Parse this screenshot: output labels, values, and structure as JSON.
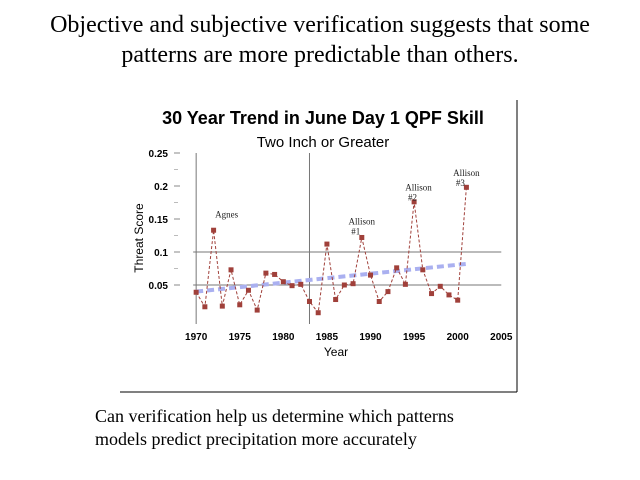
{
  "slide": {
    "heading_line1": "Objective and subjective verification suggests that some",
    "heading_line2": "patterns are more predictable than others.",
    "caption_line1": "Can verification help us determine which patterns",
    "caption_line2": "models predict precipitation more accurately"
  },
  "chart_data": {
    "type": "line",
    "title": "30 Year Trend in June Day 1 QPF Skill",
    "subtitle": "Two Inch or Greater",
    "xlabel": "Year",
    "ylabel": "Threat Score",
    "xlim": [
      1967,
      2006
    ],
    "ylim": [
      0,
      0.25
    ],
    "x_ticks": [
      1970,
      1975,
      1980,
      1985,
      1990,
      1995,
      2000,
      2005
    ],
    "y_ticks": [
      0.05,
      0.1,
      0.15,
      0.2,
      0.25
    ],
    "y_tick_labels": [
      "0.05",
      "0.1",
      "0.15",
      "0.2",
      "0.25"
    ],
    "y_gridlines": [
      0.05,
      0.1
    ],
    "x_gridlines": [
      1970,
      1983
    ],
    "colors": {
      "series": "#a0403a",
      "trend": "#aab0f0"
    },
    "series": [
      {
        "x": [
          1970,
          1971,
          1972,
          1973,
          1974,
          1975,
          1976,
          1977,
          1978,
          1979,
          1980,
          1981,
          1982,
          1983,
          1984,
          1985,
          1986,
          1987,
          1988,
          1989,
          1990,
          1991,
          1992,
          1993,
          1994,
          1995,
          1996,
          1997,
          1998,
          1999,
          2000,
          2001
        ],
        "y": [
          0.039,
          0.017,
          0.133,
          0.018,
          0.073,
          0.02,
          0.042,
          0.012,
          0.068,
          0.066,
          0.055,
          0.049,
          0.051,
          0.025,
          0.008,
          0.112,
          0.028,
          0.05,
          0.052,
          0.122,
          0.065,
          0.025,
          0.04,
          0.076,
          0.051,
          0.176,
          0.073,
          0.037,
          0.048,
          0.035,
          0.027,
          0.198
        ]
      }
    ],
    "trend": {
      "x": [
        1970,
        2001
      ],
      "y": [
        0.04,
        0.082
      ]
    },
    "annotations": [
      {
        "text": "Agnes",
        "x": 1973.5,
        "y": 0.152
      },
      {
        "text": "Allison",
        "text2": "#1",
        "x": 1989,
        "y": 0.142
      },
      {
        "text": "Allison",
        "text2": "#2",
        "x": 1995.5,
        "y": 0.193
      },
      {
        "text": "Allison",
        "text2": "#3",
        "x": 2001,
        "y": 0.215
      }
    ]
  }
}
